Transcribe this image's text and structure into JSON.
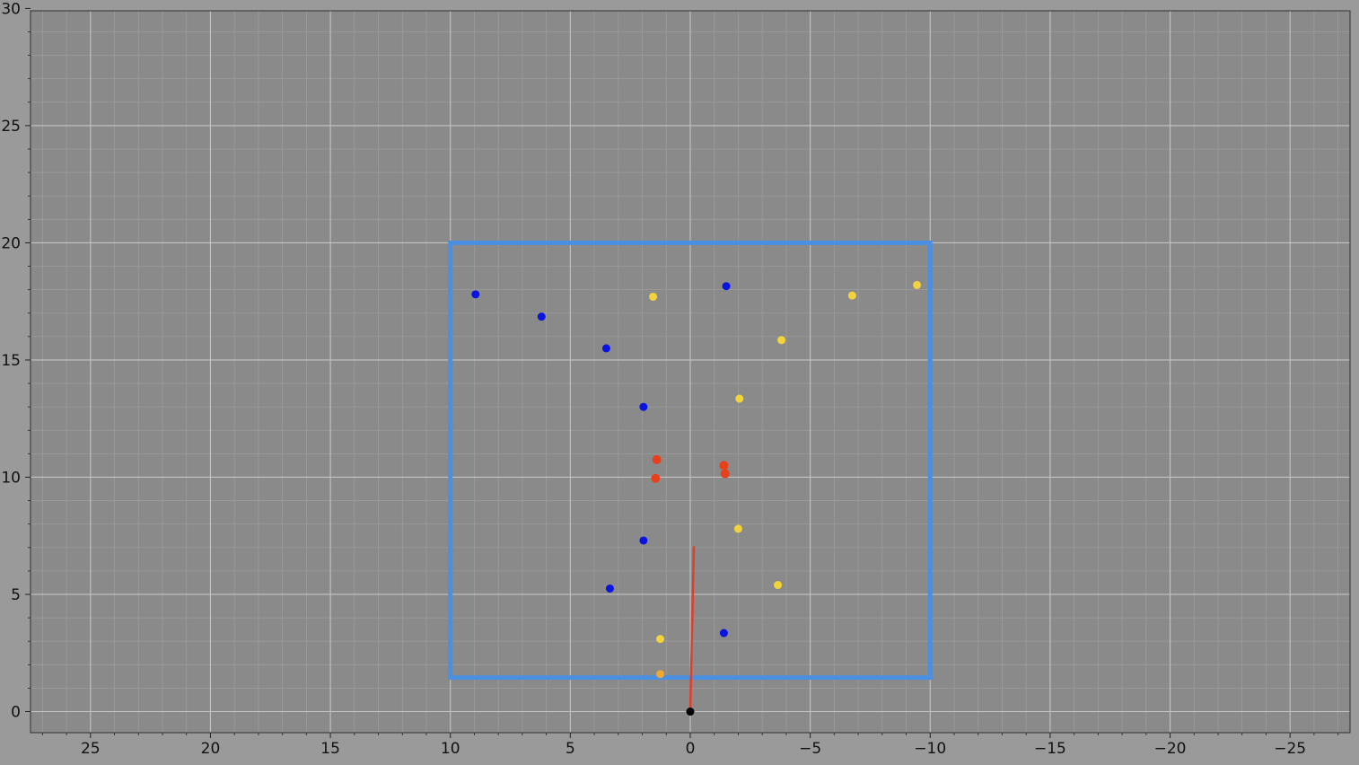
{
  "chart_data": {
    "type": "scatter",
    "title": "",
    "xlabel": "",
    "ylabel": "",
    "xlim": [
      27.5,
      -27.5
    ],
    "ylim": [
      -0.9,
      29.9
    ],
    "grid": true,
    "x_ticks": [
      25,
      20,
      15,
      10,
      5,
      0,
      -5,
      -10,
      -15,
      -20,
      -25
    ],
    "x_tick_labels": [
      "25",
      "20",
      "15",
      "10",
      "5",
      "0",
      "−5",
      "−10",
      "−15",
      "−20",
      "−25"
    ],
    "y_ticks": [
      0,
      5,
      10,
      15,
      20,
      25,
      30
    ],
    "y_tick_labels": [
      "0",
      "5",
      "10",
      "15",
      "20",
      "25",
      "30"
    ],
    "colors": {
      "background": "#8a8a8a",
      "grid_major": "#c4c4c4",
      "grid_minor": "#9c9c9c",
      "rectangle": "#4a90e2",
      "blue": "#0a14e0",
      "yellow": "#f2d33a",
      "orange": "#f0a830",
      "red": "#e8401c",
      "origin": "#000000",
      "heading_line": "#e0402a"
    },
    "region_rect": {
      "x_min": -10,
      "x_max": 10,
      "y_min": 1.45,
      "y_max": 20
    },
    "heading_line": {
      "x": [
        0,
        -0.15
      ],
      "y": [
        0,
        7.05
      ]
    },
    "series": [
      {
        "color_key": "blue",
        "x": [
          8.95,
          6.2,
          3.5,
          1.95,
          1.95,
          3.35,
          -1.5,
          -1.4
        ],
        "y": [
          17.8,
          16.85,
          15.5,
          13.0,
          7.3,
          5.25,
          18.15,
          3.35
        ]
      },
      {
        "color_key": "yellow",
        "x": [
          1.55,
          -2.05,
          -3.8,
          -6.75,
          -9.45,
          -2.0,
          -3.65,
          1.25
        ],
        "y": [
          17.7,
          13.35,
          15.85,
          17.75,
          18.2,
          7.8,
          5.4,
          3.1
        ]
      },
      {
        "color_key": "orange",
        "x": [
          1.25
        ],
        "y": [
          1.6
        ]
      },
      {
        "color_key": "red",
        "x": [
          1.4,
          1.45,
          -1.4,
          -1.45
        ],
        "y": [
          10.75,
          9.95,
          10.5,
          10.15
        ]
      },
      {
        "color_key": "origin",
        "x": [
          0
        ],
        "y": [
          0
        ]
      }
    ]
  }
}
